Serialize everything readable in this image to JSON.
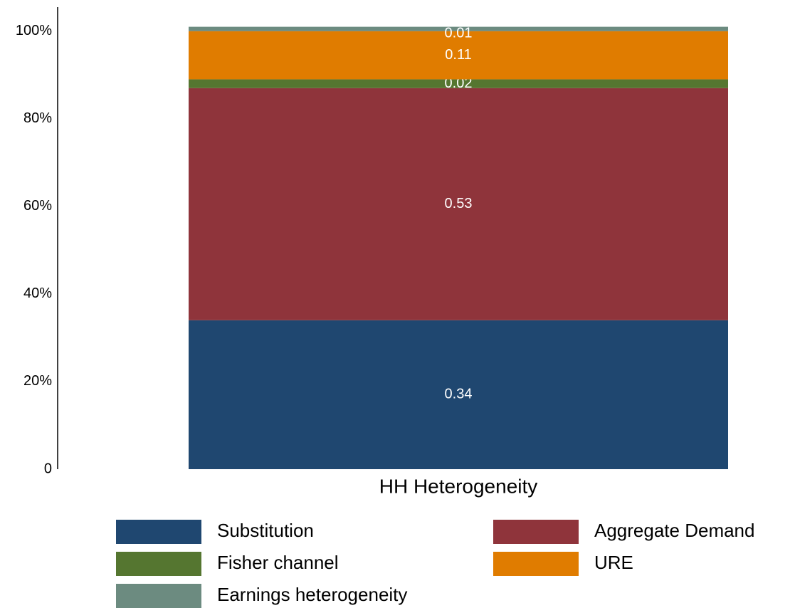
{
  "chart_data": {
    "type": "stacked-bar",
    "categories": [
      "HH Heterogeneity"
    ],
    "series": [
      {
        "name": "Substitution",
        "color": "#1f4770",
        "values": [
          0.34
        ]
      },
      {
        "name": "Aggregate Demand",
        "color": "#8f343b",
        "values": [
          0.53
        ]
      },
      {
        "name": "Fisher channel",
        "color": "#557630",
        "values": [
          0.02
        ]
      },
      {
        "name": "URE",
        "color": "#e07c00",
        "values": [
          0.11
        ]
      },
      {
        "name": "Earnings heterogeneity",
        "color": "#6c8b80",
        "values": [
          0.01
        ]
      }
    ],
    "ylim": [
      0,
      1.05
    ],
    "yticks": [
      0,
      {
        "value": 0.2,
        "label": "20%"
      },
      {
        "value": 0.4,
        "label": "40%"
      },
      {
        "value": 0.6,
        "label": "60%"
      },
      {
        "value": 0.8,
        "label": "80%"
      },
      {
        "value": 1.0,
        "label": "100%"
      }
    ],
    "grid": false
  }
}
